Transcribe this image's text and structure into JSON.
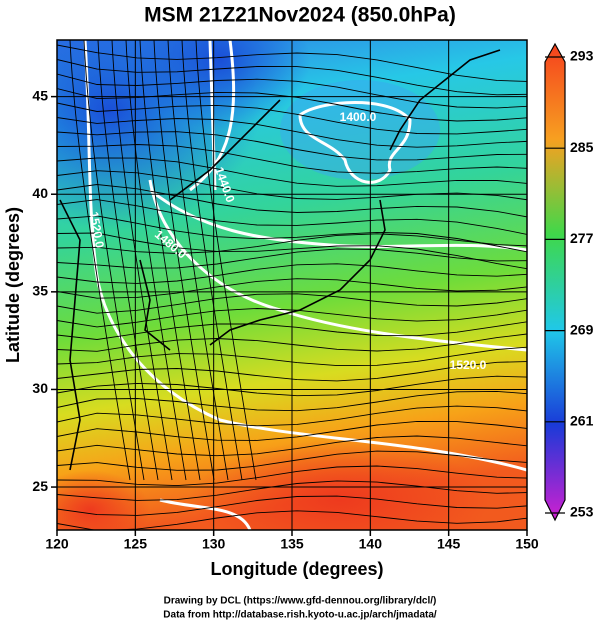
{
  "title": "MSM 21Z21Nov2024 (850.0hPa)",
  "xlabel": "Longitude (degrees)",
  "ylabel": "Latitude  (degrees)",
  "xlim": [
    120,
    150
  ],
  "xticks": [
    120,
    125,
    130,
    135,
    140,
    145,
    150
  ],
  "ylim": [
    22.8,
    47.9
  ],
  "yticks": [
    25,
    30,
    35,
    40,
    45
  ],
  "colorbar": {
    "lim": [
      253,
      293
    ],
    "ticks": [
      253,
      261,
      269,
      277,
      285,
      293
    ]
  },
  "contour_labels": [
    "1400.0",
    "1440.0",
    "1480.0",
    "1520.0",
    "1520.0"
  ],
  "credits": [
    "Drawing by DCL (https://www.gfd-dennou.org/library/dcl/)",
    "Data from http://database.rish.kyoto-u.ac.jp/arch/jmadata/"
  ]
}
